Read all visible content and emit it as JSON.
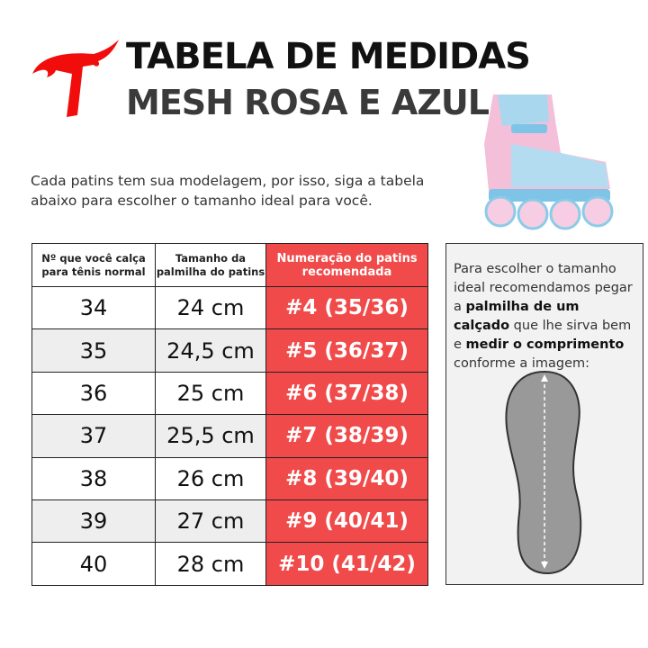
{
  "header": {
    "title": "TABELA DE MEDIDAS",
    "subtitle": "MESH ROSA E AZUL",
    "logo_icon": "red-t-logo",
    "brand_color": "#f20d0d"
  },
  "intro": "Cada patins tem sua modelagem, por isso, siga a tabela abaixo para escolher o tamanho ideal para você.",
  "table": {
    "headers": [
      "Nº que você calça para tênis normal",
      "Tamanho da palmilha do patins",
      "Numeração do patins recomendada"
    ],
    "rows": [
      [
        "34",
        "24 cm",
        "#4 (35/36)"
      ],
      [
        "35",
        "24,5 cm",
        "#5 (36/37)"
      ],
      [
        "36",
        "25 cm",
        "#6 (37/38)"
      ],
      [
        "37",
        "25,5 cm",
        "#7 (38/39)"
      ],
      [
        "38",
        "26 cm",
        "#8 (39/40)"
      ],
      [
        "39",
        "27 cm",
        "#9 (40/41)"
      ],
      [
        "40",
        "28 cm",
        "#10 (41/42)"
      ]
    ],
    "highlight_color": "#f04a4a"
  },
  "tip": {
    "p1": "Para escolher o tamanho ideal recomendamos pegar a ",
    "b1": "palmilha de um calçado",
    "p2": " que lhe sirva bem ",
    "p3": "e ",
    "b2": "medir o comprimento",
    "p4": " conforme a imagem:"
  }
}
